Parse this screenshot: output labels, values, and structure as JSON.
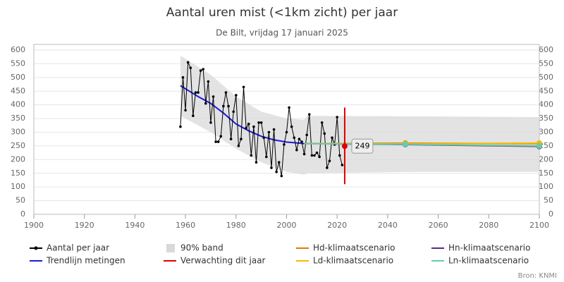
{
  "chart_data": {
    "type": "line",
    "title": "Aantal uren mist (<1km zicht) per jaar",
    "subtitle": "De Bilt, vrijdag 17 januari 2025",
    "credit": "Bron: KNMI",
    "xlim": [
      1900,
      2100
    ],
    "xticks": [
      1900,
      1920,
      1940,
      1960,
      1980,
      2000,
      2020,
      2040,
      2060,
      2080,
      2100
    ],
    "ylim": [
      0,
      600
    ],
    "yticks": [
      0,
      50,
      100,
      150,
      200,
      250,
      300,
      350,
      400,
      450,
      500,
      550,
      600
    ],
    "y2lim": [
      0,
      600
    ],
    "y2ticks": [
      0,
      50,
      100,
      150,
      200,
      250,
      300,
      350,
      400,
      450,
      500,
      550,
      600
    ],
    "grid": true,
    "legend": "bottom",
    "series": [
      {
        "name": "Aantal per jaar",
        "kind": "points",
        "color": "#000000",
        "x": [
          1958,
          1959,
          1960,
          1961,
          1962,
          1963,
          1964,
          1965,
          1966,
          1967,
          1968,
          1969,
          1970,
          1971,
          1972,
          1973,
          1974,
          1975,
          1976,
          1977,
          1978,
          1979,
          1980,
          1981,
          1982,
          1983,
          1984,
          1985,
          1986,
          1987,
          1988,
          1989,
          1990,
          1991,
          1992,
          1993,
          1994,
          1995,
          1996,
          1997,
          1998,
          1999,
          2000,
          2001,
          2002,
          2003,
          2004,
          2005,
          2006,
          2007,
          2008,
          2009,
          2010,
          2011,
          2012,
          2013,
          2014,
          2015,
          2016,
          2017,
          2018,
          2019,
          2020,
          2021,
          2022
        ],
        "values": [
          320,
          500,
          380,
          555,
          535,
          360,
          445,
          445,
          525,
          530,
          405,
          485,
          335,
          430,
          265,
          265,
          285,
          395,
          445,
          395,
          275,
          375,
          435,
          250,
          275,
          465,
          315,
          330,
          215,
          320,
          190,
          335,
          335,
          280,
          210,
          300,
          170,
          310,
          155,
          190,
          140,
          255,
          300,
          390,
          320,
          280,
          235,
          275,
          265,
          220,
          290,
          365,
          215,
          215,
          225,
          210,
          335,
          295,
          170,
          195,
          280,
          255,
          355,
          215,
          180
        ]
      },
      {
        "name": "90% band",
        "kind": "band",
        "color": "#d9d9d9",
        "x": [
          1958,
          1970,
          1980,
          1990,
          2000,
          2007,
          2008,
          2050,
          2100
        ],
        "upper": [
          580,
          510,
          430,
          375,
          350,
          345,
          360,
          358,
          355
        ],
        "lower": [
          360,
          300,
          240,
          190,
          155,
          145,
          150,
          155,
          155
        ]
      },
      {
        "name": "Hd-klimaatscenario",
        "kind": "scenario",
        "color": "#e07b00",
        "x": [
          2007,
          2047,
          2100
        ],
        "values": [
          258,
          260,
          258
        ]
      },
      {
        "name": "Hn-klimaatscenario",
        "kind": "scenario",
        "color": "#5b2c83",
        "x": [
          2007,
          2047,
          2100
        ],
        "values": [
          258,
          255,
          248
        ]
      },
      {
        "name": "Trendlijn metingen",
        "kind": "line",
        "color": "#1a1adb",
        "x": [
          1958,
          1965,
          1970,
          1975,
          1980,
          1985,
          1990,
          1995,
          2000,
          2005,
          2007
        ],
        "values": [
          470,
          430,
          405,
          370,
          330,
          305,
          285,
          272,
          264,
          260,
          258
        ]
      },
      {
        "name": "Verwachting dit jaar",
        "kind": "forecast",
        "color": "#e00000",
        "x": [
          2023
        ],
        "values": [
          249
        ],
        "error_low": [
          110
        ],
        "error_high": [
          390
        ]
      },
      {
        "name": "Ld-klimaatscenario",
        "kind": "scenario",
        "color": "#f5b800",
        "x": [
          2007,
          2047,
          2100
        ],
        "values": [
          258,
          258,
          260
        ]
      },
      {
        "name": "Ln-klimaatscenario",
        "kind": "scenario",
        "color": "#66ccaa",
        "x": [
          2007,
          2047,
          2100
        ],
        "values": [
          258,
          256,
          250
        ]
      }
    ]
  }
}
